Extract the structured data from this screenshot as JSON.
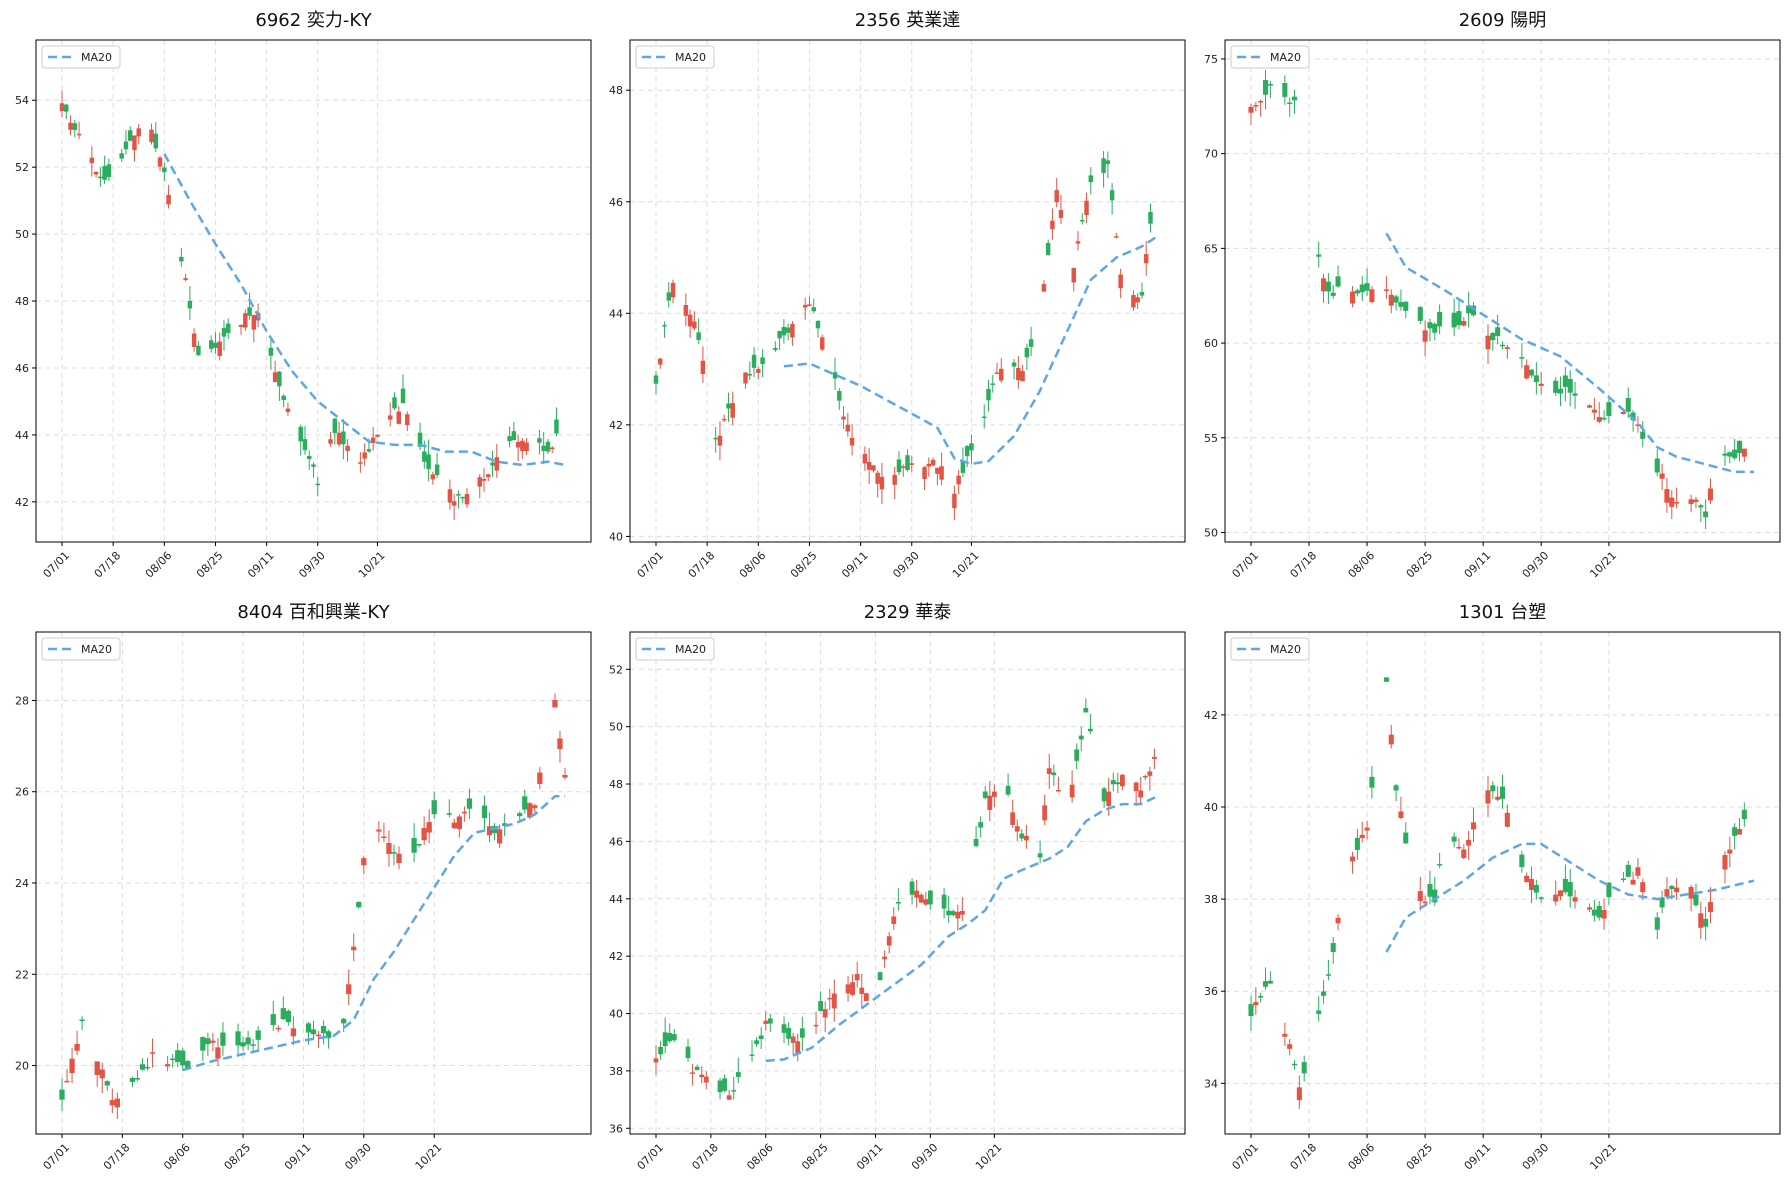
{
  "figure": {
    "colors": {
      "up": "#e45444",
      "down": "#2aae5e",
      "ma": "#5fa6e6",
      "grid": "#dddddd",
      "frame": "#000000"
    },
    "x_ticks": [
      "07/01",
      "07/18",
      "08/06",
      "08/25",
      "09/11",
      "09/30",
      "10/21"
    ],
    "legend_label": "MA20",
    "grid": true,
    "legend_position": "top-left"
  },
  "chart_data": [
    {
      "type": "candlestick",
      "title": "6962 奕力-KY",
      "ylim": [
        40.8,
        55.8
      ],
      "yticks": [
        42,
        44,
        46,
        48,
        50,
        52,
        54
      ],
      "ma20": [
        [
          24,
          52.4
        ],
        [
          30,
          51.0
        ],
        [
          36,
          49.7
        ],
        [
          42,
          48.5
        ],
        [
          48,
          47.1
        ],
        [
          54,
          45.9
        ],
        [
          60,
          45.0
        ],
        [
          66,
          44.4
        ],
        [
          72,
          43.8
        ],
        [
          78,
          43.7
        ],
        [
          84,
          43.7
        ],
        [
          90,
          43.5
        ],
        [
          96,
          43.5
        ],
        [
          102,
          43.2
        ],
        [
          108,
          43.1
        ],
        [
          114,
          43.2
        ],
        [
          118,
          43.1
        ]
      ],
      "anchors": [
        [
          0,
          53.8
        ],
        [
          10,
          51.5
        ],
        [
          20,
          53.5
        ],
        [
          24,
          51.8
        ],
        [
          28,
          49.3
        ],
        [
          32,
          46.3
        ],
        [
          40,
          47.2
        ],
        [
          46,
          47.8
        ],
        [
          50,
          45.8
        ],
        [
          54,
          44.5
        ],
        [
          60,
          42.6
        ],
        [
          64,
          44.2
        ],
        [
          70,
          43.1
        ],
        [
          76,
          44.5
        ],
        [
          80,
          44.8
        ],
        [
          86,
          43.0
        ],
        [
          92,
          42.1
        ],
        [
          98,
          42.6
        ],
        [
          104,
          43.7
        ],
        [
          110,
          43.9
        ],
        [
          114,
          43.4
        ],
        [
          118,
          44.5
        ]
      ]
    },
    {
      "type": "candlestick",
      "title": "2356 英業達",
      "ylim": [
        39.9,
        48.9
      ],
      "yticks": [
        40,
        42,
        44,
        46,
        48
      ],
      "ma20": [
        [
          30,
          43.05
        ],
        [
          36,
          43.1
        ],
        [
          42,
          42.9
        ],
        [
          48,
          42.7
        ],
        [
          54,
          42.45
        ],
        [
          60,
          42.2
        ],
        [
          66,
          41.95
        ],
        [
          70,
          41.4
        ],
        [
          74,
          41.3
        ],
        [
          78,
          41.35
        ],
        [
          84,
          41.8
        ],
        [
          90,
          42.6
        ],
        [
          96,
          43.6
        ],
        [
          102,
          44.6
        ],
        [
          108,
          45.0
        ],
        [
          114,
          45.2
        ],
        [
          118,
          45.4
        ]
      ],
      "anchors": [
        [
          0,
          42.8
        ],
        [
          4,
          44.6
        ],
        [
          10,
          43.6
        ],
        [
          14,
          41.7
        ],
        [
          20,
          42.8
        ],
        [
          26,
          43.2
        ],
        [
          30,
          43.6
        ],
        [
          36,
          44.2
        ],
        [
          40,
          43.3
        ],
        [
          46,
          41.7
        ],
        [
          52,
          41.1
        ],
        [
          58,
          41.2
        ],
        [
          66,
          41.3
        ],
        [
          70,
          40.8
        ],
        [
          76,
          42.0
        ],
        [
          82,
          43.3
        ],
        [
          86,
          42.9
        ],
        [
          90,
          44.0
        ],
        [
          94,
          46.2
        ],
        [
          98,
          44.9
        ],
        [
          102,
          46.3
        ],
        [
          106,
          46.7
        ],
        [
          110,
          44.1
        ],
        [
          114,
          44.4
        ],
        [
          118,
          46.7
        ]
      ]
    },
    {
      "type": "candlestick",
      "title": "2609 陽明",
      "ylim": [
        49.5,
        76.0
      ],
      "yticks": [
        50,
        55,
        60,
        65,
        70,
        75
      ],
      "ma20": [
        [
          28,
          65.8
        ],
        [
          32,
          64.0
        ],
        [
          40,
          62.8
        ],
        [
          48,
          61.5
        ],
        [
          56,
          60.2
        ],
        [
          64,
          59.3
        ],
        [
          72,
          57.6
        ],
        [
          80,
          55.8
        ],
        [
          84,
          54.5
        ],
        [
          88,
          54.0
        ],
        [
          94,
          53.6
        ],
        [
          100,
          53.2
        ],
        [
          104,
          53.2
        ]
      ],
      "anchors": [
        [
          0,
          72.5
        ],
        [
          6,
          73.8
        ],
        [
          8,
          72.6
        ],
        [
          10,
          null
        ],
        [
          14,
          64.5
        ],
        [
          16,
          62.7
        ],
        [
          22,
          62.8
        ],
        [
          28,
          62.6
        ],
        [
          34,
          61.0
        ],
        [
          38,
          60.8
        ],
        [
          42,
          60.8
        ],
        [
          46,
          61.7
        ],
        [
          50,
          60.3
        ],
        [
          54,
          59.6
        ],
        [
          58,
          58.3
        ],
        [
          62,
          57.3
        ],
        [
          66,
          57.5
        ],
        [
          72,
          56.0
        ],
        [
          78,
          56.3
        ],
        [
          80,
          55.8
        ],
        [
          84,
          53.4
        ],
        [
          88,
          51.5
        ],
        [
          92,
          51.8
        ],
        [
          94,
          50.7
        ],
        [
          96,
          53.8
        ],
        [
          100,
          54.0
        ],
        [
          104,
          54.9
        ]
      ]
    },
    {
      "type": "candlestick",
      "title": "8404 百和興業-KY",
      "ylim": [
        18.5,
        29.5
      ],
      "yticks": [
        20,
        22,
        24,
        26,
        28
      ],
      "ma20": [
        [
          24,
          19.9
        ],
        [
          30,
          20.1
        ],
        [
          36,
          20.25
        ],
        [
          42,
          20.4
        ],
        [
          48,
          20.55
        ],
        [
          54,
          20.65
        ],
        [
          58,
          21.0
        ],
        [
          62,
          21.9
        ],
        [
          66,
          22.5
        ],
        [
          70,
          23.2
        ],
        [
          74,
          23.9
        ],
        [
          78,
          24.6
        ],
        [
          82,
          25.1
        ],
        [
          86,
          25.2
        ],
        [
          90,
          25.3
        ],
        [
          94,
          25.5
        ],
        [
          98,
          25.9
        ],
        [
          100,
          25.9
        ]
      ],
      "anchors": [
        [
          0,
          19.2
        ],
        [
          4,
          21.0
        ],
        [
          8,
          19.9
        ],
        [
          10,
          19.2
        ],
        [
          14,
          19.6
        ],
        [
          18,
          20.2
        ],
        [
          22,
          20.1
        ],
        [
          26,
          20.0
        ],
        [
          30,
          20.5
        ],
        [
          34,
          20.3
        ],
        [
          40,
          20.6
        ],
        [
          44,
          21.0
        ],
        [
          48,
          20.7
        ],
        [
          52,
          20.6
        ],
        [
          56,
          20.9
        ],
        [
          58,
          22.5
        ],
        [
          60,
          24.6
        ],
        [
          62,
          25.5
        ],
        [
          66,
          24.6
        ],
        [
          70,
          24.7
        ],
        [
          74,
          25.6
        ],
        [
          78,
          25.4
        ],
        [
          82,
          25.8
        ],
        [
          86,
          25.1
        ],
        [
          90,
          25.5
        ],
        [
          94,
          25.8
        ],
        [
          98,
          28.1
        ],
        [
          100,
          26.4
        ]
      ]
    },
    {
      "type": "candlestick",
      "title": "2329 華泰",
      "ylim": [
        35.8,
        53.3
      ],
      "yticks": [
        36,
        38,
        40,
        42,
        44,
        46,
        48,
        50,
        52
      ],
      "ma20": [
        [
          24,
          38.35
        ],
        [
          28,
          38.4
        ],
        [
          34,
          38.8
        ],
        [
          40,
          39.6
        ],
        [
          46,
          40.3
        ],
        [
          52,
          41.0
        ],
        [
          58,
          41.7
        ],
        [
          64,
          42.7
        ],
        [
          68,
          43.1
        ],
        [
          72,
          43.6
        ],
        [
          76,
          44.7
        ],
        [
          80,
          45.0
        ],
        [
          86,
          45.4
        ],
        [
          90,
          45.8
        ],
        [
          94,
          46.7
        ],
        [
          98,
          47.1
        ],
        [
          102,
          47.3
        ],
        [
          106,
          47.3
        ],
        [
          110,
          47.6
        ]
      ],
      "anchors": [
        [
          0,
          38.6
        ],
        [
          4,
          39.2
        ],
        [
          8,
          38.0
        ],
        [
          12,
          37.6
        ],
        [
          16,
          37.2
        ],
        [
          20,
          38.2
        ],
        [
          24,
          39.6
        ],
        [
          28,
          39.3
        ],
        [
          32,
          39.0
        ],
        [
          36,
          40.0
        ],
        [
          40,
          40.8
        ],
        [
          44,
          41.3
        ],
        [
          48,
          40.2
        ],
        [
          52,
          43.5
        ],
        [
          56,
          44.3
        ],
        [
          60,
          43.9
        ],
        [
          64,
          43.4
        ],
        [
          68,
          43.8
        ],
        [
          72,
          47.6
        ],
        [
          76,
          48.1
        ],
        [
          80,
          46.2
        ],
        [
          84,
          45.6
        ],
        [
          86,
          48.6
        ],
        [
          90,
          47.2
        ],
        [
          94,
          50.5
        ],
        [
          98,
          47.5
        ],
        [
          102,
          48.3
        ],
        [
          106,
          47.8
        ],
        [
          110,
          49.1
        ]
      ]
    },
    {
      "type": "candlestick",
      "title": "1301 台塑",
      "ylim": [
        32.9,
        43.8
      ],
      "yticks": [
        34,
        36,
        38,
        40,
        42
      ],
      "ma20": [
        [
          28,
          36.85
        ],
        [
          32,
          37.6
        ],
        [
          38,
          38.0
        ],
        [
          44,
          38.4
        ],
        [
          50,
          38.9
        ],
        [
          56,
          39.2
        ],
        [
          60,
          39.2
        ],
        [
          66,
          38.8
        ],
        [
          72,
          38.4
        ],
        [
          78,
          38.1
        ],
        [
          84,
          38.0
        ],
        [
          90,
          38.1
        ],
        [
          96,
          38.2
        ],
        [
          100,
          38.3
        ],
        [
          104,
          38.4
        ]
      ],
      "anchors": [
        [
          0,
          35.5
        ],
        [
          4,
          36.2
        ],
        [
          8,
          34.8
        ],
        [
          10,
          33.9
        ],
        [
          12,
          34.5
        ],
        [
          16,
          36.3
        ],
        [
          20,
          38.7
        ],
        [
          24,
          39.6
        ],
        [
          28,
          42.8
        ],
        [
          30,
          40.4
        ],
        [
          34,
          38.2
        ],
        [
          38,
          37.9
        ],
        [
          40,
          39.4
        ],
        [
          44,
          39.0
        ],
        [
          48,
          40.5
        ],
        [
          52,
          40.1
        ],
        [
          56,
          38.8
        ],
        [
          60,
          38.0
        ],
        [
          64,
          38.2
        ],
        [
          68,
          37.9
        ],
        [
          72,
          37.7
        ],
        [
          76,
          38.3
        ],
        [
          80,
          38.6
        ],
        [
          84,
          37.4
        ],
        [
          86,
          38.2
        ],
        [
          90,
          38.4
        ],
        [
          94,
          37.5
        ],
        [
          98,
          39.0
        ],
        [
          102,
          39.7
        ],
        [
          104,
          40.1
        ]
      ]
    }
  ]
}
